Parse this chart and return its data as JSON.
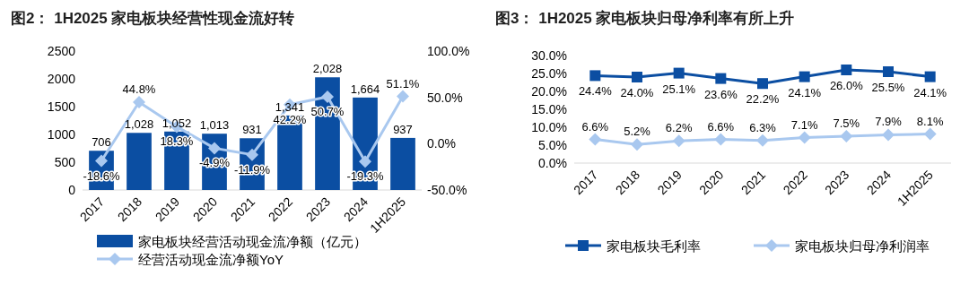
{
  "chart_data": [
    {
      "type": "bar",
      "title": "图2： 1H2025 家电板块经营性现金流好转",
      "categories": [
        "2017",
        "2018",
        "2019",
        "2020",
        "2021",
        "2022",
        "2023",
        "2024",
        "1H2025"
      ],
      "series": [
        {
          "name": "家电板块经营活动现金流净额（亿元）",
          "type": "bar",
          "color": "#0b4ea2",
          "values": [
            706,
            1028,
            1052,
            1013,
            931,
            1341,
            2028,
            1664,
            937
          ],
          "value_labels": [
            "706",
            "1,028",
            "1,052",
            "1,013",
            "931",
            "1,341",
            "2,028",
            "1,664",
            "937"
          ]
        },
        {
          "name": "经营活动现金流净额YoY",
          "type": "line",
          "axis": "y2",
          "color": "#a9c8ef",
          "marker": "diamond",
          "values": [
            -18.6,
            44.8,
            18.3,
            -4.9,
            -11.9,
            42.2,
            50.7,
            -19.3,
            51.1
          ],
          "value_labels": [
            "-18.6%",
            "44.8%",
            "18.3%",
            "-4.9%",
            "-11.9%",
            "42.2%",
            "50.7%",
            "-19.3%",
            "51.1%"
          ]
        }
      ],
      "ylim": [
        0,
        2500
      ],
      "yticks": [
        0,
        500,
        1000,
        1500,
        2000,
        2500
      ],
      "y2lim": [
        -50,
        100
      ],
      "y2ticks": [
        {
          "value": -50,
          "label": "-50.0%"
        },
        {
          "value": 0,
          "label": "0.0%"
        },
        {
          "value": 50,
          "label": "50.0%"
        },
        {
          "value": 100,
          "label": "100.0%"
        }
      ],
      "legend": "bottom",
      "grid": false
    },
    {
      "type": "line",
      "title": "图3： 1H2025 家电板块归母净利率有所上升",
      "categories": [
        "2017",
        "2018",
        "2019",
        "2020",
        "2021",
        "2022",
        "2023",
        "2024",
        "1H2025"
      ],
      "series": [
        {
          "name": "家电板块毛利率",
          "color": "#0b4ea2",
          "marker": "square",
          "values": [
            24.4,
            24.0,
            25.1,
            23.6,
            22.2,
            24.1,
            26.0,
            25.5,
            24.1
          ],
          "value_labels": [
            "24.4%",
            "24.0%",
            "25.1%",
            "23.6%",
            "22.2%",
            "24.1%",
            "26.0%",
            "25.5%",
            "24.1%"
          ]
        },
        {
          "name": "家电板块归母净利润率",
          "color": "#a9c8ef",
          "marker": "diamond",
          "values": [
            6.6,
            5.2,
            6.2,
            6.6,
            6.3,
            7.1,
            7.5,
            7.9,
            8.1
          ],
          "value_labels": [
            "6.6%",
            "5.2%",
            "6.2%",
            "6.6%",
            "6.3%",
            "7.1%",
            "7.5%",
            "7.9%",
            "8.1%"
          ]
        }
      ],
      "ylim": [
        0,
        30
      ],
      "yticks": [
        {
          "value": 0,
          "label": "0.0%"
        },
        {
          "value": 5,
          "label": "5.0%"
        },
        {
          "value": 10,
          "label": "10.0%"
        },
        {
          "value": 15,
          "label": "15.0%"
        },
        {
          "value": 20,
          "label": "20.0%"
        },
        {
          "value": 25,
          "label": "25.0%"
        },
        {
          "value": 30,
          "label": "30.0%"
        }
      ],
      "legend": "bottom",
      "grid": false
    }
  ]
}
